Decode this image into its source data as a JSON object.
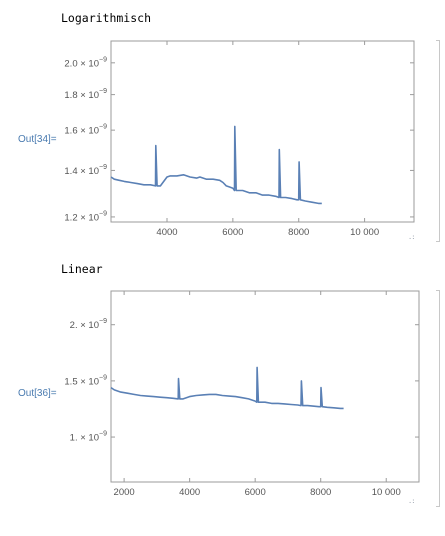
{
  "cells": [
    {
      "heading": "Logarithmisch",
      "out_label": "Out[34]=",
      "chart_data": {
        "type": "line",
        "title": "",
        "xlabel": "",
        "ylabel": "",
        "scale_y": "log",
        "frame": true,
        "grid": false,
        "xlim": [
          2300,
          11500
        ],
        "ylim": [
          1.18e-09,
          2.15e-09
        ],
        "x_ticks": [
          {
            "value": 4000,
            "label": "4000"
          },
          {
            "value": 6000,
            "label": "6000"
          },
          {
            "value": 8000,
            "label": "8000"
          },
          {
            "value": 10000,
            "label": "10 000"
          }
        ],
        "y_ticks": [
          {
            "value": 1.2e-09,
            "mantissa": "1.2",
            "exponent": "−9"
          },
          {
            "value": 1.4e-09,
            "mantissa": "1.4",
            "exponent": "−9"
          },
          {
            "value": 1.6e-09,
            "mantissa": "1.6",
            "exponent": "−9"
          },
          {
            "value": 1.8e-09,
            "mantissa": "1.8",
            "exponent": "−9"
          },
          {
            "value": 2e-09,
            "mantissa": "2.0",
            "exponent": "−9"
          }
        ],
        "series": [
          {
            "color": "#5a80b5",
            "x": [
              2300,
              2400,
              2550,
              2700,
              2900,
              3100,
              3300,
              3500,
              3650,
              3660,
              3700,
              3800,
              4000,
              4100,
              4300,
              4500,
              4700,
              4900,
              5000,
              5200,
              5400,
              5600,
              5700,
              5800,
              5900,
              6000,
              6050,
              6060,
              6100,
              6300,
              6500,
              6700,
              6900,
              7100,
              7300,
              7400,
              7410,
              7450,
              7600,
              7800,
              7950,
              8000,
              8010,
              8050,
              8200,
              8400,
              8600,
              8700
            ],
            "y": [
              1.37e-09,
              1.36e-09,
              1.355e-09,
              1.35e-09,
              1.345e-09,
              1.34e-09,
              1.335e-09,
              1.335e-09,
              1.33e-09,
              1.52e-09,
              1.33e-09,
              1.33e-09,
              1.37e-09,
              1.375e-09,
              1.375e-09,
              1.38e-09,
              1.37e-09,
              1.365e-09,
              1.37e-09,
              1.36e-09,
              1.36e-09,
              1.355e-09,
              1.345e-09,
              1.33e-09,
              1.325e-09,
              1.32e-09,
              1.31e-09,
              1.62e-09,
              1.31e-09,
              1.31e-09,
              1.3e-09,
              1.3e-09,
              1.29e-09,
              1.29e-09,
              1.285e-09,
              1.28e-09,
              1.5e-09,
              1.28e-09,
              1.28e-09,
              1.275e-09,
              1.27e-09,
              1.27e-09,
              1.44e-09,
              1.27e-09,
              1.265e-09,
              1.26e-09,
              1.255e-09,
              1.255e-09
            ]
          }
        ]
      }
    },
    {
      "heading": "Linear",
      "out_label": "Out[36]=",
      "chart_data": {
        "type": "line",
        "title": "",
        "xlabel": "",
        "ylabel": "",
        "scale_y": "linear",
        "frame": true,
        "grid": false,
        "xlim": [
          1600,
          11000
        ],
        "ylim": [
          6e-10,
          2.3e-09
        ],
        "x_ticks": [
          {
            "value": 2000,
            "label": "2000"
          },
          {
            "value": 4000,
            "label": "4000"
          },
          {
            "value": 6000,
            "label": "6000"
          },
          {
            "value": 8000,
            "label": "8000"
          },
          {
            "value": 10000,
            "label": "10 000"
          }
        ],
        "y_ticks": [
          {
            "value": 1e-09,
            "mantissa": "1.",
            "exponent": "−9"
          },
          {
            "value": 1.5e-09,
            "mantissa": "1.5",
            "exponent": "−9"
          },
          {
            "value": 2e-09,
            "mantissa": "2.",
            "exponent": "−9"
          }
        ],
        "series": [
          {
            "color": "#5a80b5",
            "x": [
              1600,
              1700,
              1900,
              2100,
              2300,
              2500,
              2700,
              2900,
              3100,
              3300,
              3500,
              3650,
              3660,
              3700,
              3800,
              4000,
              4200,
              4400,
              4600,
              4800,
              5000,
              5200,
              5400,
              5600,
              5800,
              6000,
              6050,
              6060,
              6100,
              6300,
              6500,
              6700,
              6900,
              7100,
              7300,
              7400,
              7410,
              7450,
              7600,
              7800,
              7950,
              8000,
              8010,
              8050,
              8200,
              8400,
              8600,
              8700
            ],
            "y": [
              1.44e-09,
              1.42e-09,
              1.4e-09,
              1.39e-09,
              1.38e-09,
              1.37e-09,
              1.365e-09,
              1.36e-09,
              1.355e-09,
              1.35e-09,
              1.345e-09,
              1.34e-09,
              1.52e-09,
              1.34e-09,
              1.34e-09,
              1.36e-09,
              1.37e-09,
              1.375e-09,
              1.38e-09,
              1.38e-09,
              1.37e-09,
              1.365e-09,
              1.36e-09,
              1.35e-09,
              1.34e-09,
              1.32e-09,
              1.31e-09,
              1.62e-09,
              1.31e-09,
              1.31e-09,
              1.3e-09,
              1.3e-09,
              1.295e-09,
              1.29e-09,
              1.285e-09,
              1.28e-09,
              1.5e-09,
              1.28e-09,
              1.28e-09,
              1.275e-09,
              1.27e-09,
              1.27e-09,
              1.44e-09,
              1.27e-09,
              1.265e-09,
              1.26e-09,
              1.255e-09,
              1.255e-09
            ]
          }
        ]
      }
    }
  ],
  "resize_grip_glyph": ".:"
}
